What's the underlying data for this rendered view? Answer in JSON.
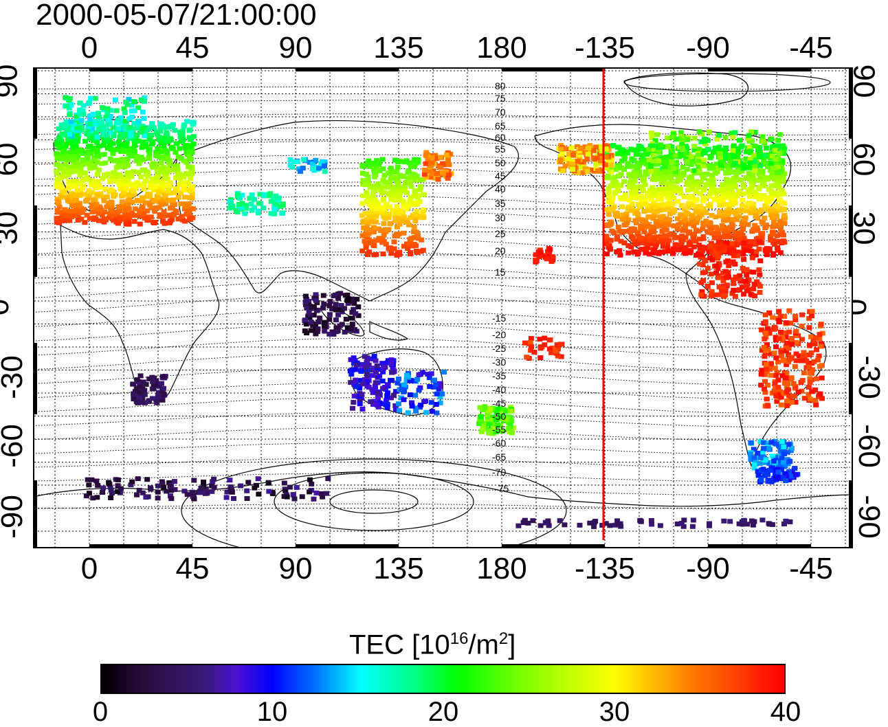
{
  "timestamp": "2000-05-07/21:00:00",
  "lon_ticks": [
    "0",
    "45",
    "90",
    "135",
    "180",
    "-135",
    "-90",
    "-45"
  ],
  "lat_ticks": [
    "90",
    "60",
    "30",
    "0",
    "-30",
    "-60",
    "-90"
  ],
  "contour_labels": [
    "80",
    "75",
    "70",
    "65",
    "60",
    "55",
    "50",
    "45",
    "40",
    "35",
    "30",
    "25",
    "20",
    "15",
    "-15",
    "-20",
    "-25",
    "-30",
    "-35",
    "-40",
    "-45",
    "-50",
    "-55",
    "-60",
    "-65",
    "-70",
    "-75"
  ],
  "colorbar": {
    "title_prefix": "TEC  [10",
    "title_exp": "16",
    "title_mid": "/m",
    "title_exp2": "2",
    "title_suffix": "]",
    "ticks": [
      "0",
      "10",
      "20",
      "30",
      "40"
    ],
    "range": [
      0,
      40
    ]
  },
  "colors": {
    "terminator": "#ff0000",
    "low": "#000000",
    "high": "#ff0000"
  }
}
